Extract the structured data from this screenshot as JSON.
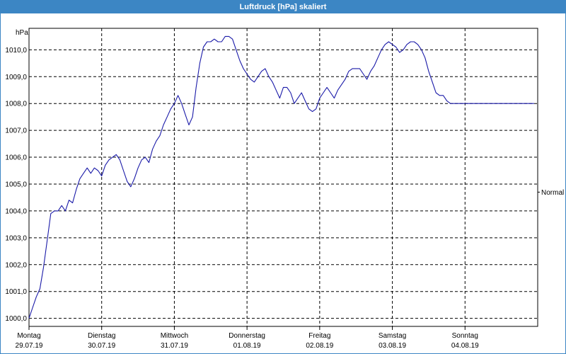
{
  "window": {
    "title": "Luftdruck [hPa] skaliert"
  },
  "chart_data": {
    "type": "line",
    "title": "Luftdruck [hPa] skaliert",
    "ylabel": "hPa",
    "ylim": [
      999.7,
      1010.8
    ],
    "y_ticks": [
      "1000,0",
      "1001,0",
      "1002,0",
      "1003,0",
      "1004,0",
      "1005,0",
      "1006,0",
      "1007,0",
      "1008,0",
      "1009,0",
      "1010,0"
    ],
    "y_tick_values": [
      1000,
      1001,
      1002,
      1003,
      1004,
      1005,
      1006,
      1007,
      1008,
      1009,
      1010
    ],
    "x_range": [
      0,
      7
    ],
    "days": [
      {
        "name": "Montag",
        "date": "29.07.19"
      },
      {
        "name": "Dienstag",
        "date": "30.07.19"
      },
      {
        "name": "Mittwoch",
        "date": "31.07.19"
      },
      {
        "name": "Donnerstag",
        "date": "01.08.19"
      },
      {
        "name": "Freitag",
        "date": "02.08.19"
      },
      {
        "name": "Samstag",
        "date": "03.08.19"
      },
      {
        "name": "Sonntag",
        "date": "04.08.19"
      }
    ],
    "reference_label": "Normal",
    "reference_value": 1004.7,
    "grid": true,
    "line_color": "#1a1aa8",
    "series": [
      {
        "x": [
          0.0,
          0.05,
          0.1,
          0.15,
          0.2,
          0.25,
          0.3,
          0.35,
          0.4,
          0.45,
          0.5,
          0.55,
          0.6,
          0.65,
          0.7,
          0.75,
          0.8,
          0.85,
          0.9,
          0.95,
          1.0,
          1.05,
          1.1,
          1.15,
          1.2,
          1.25,
          1.3,
          1.35,
          1.4,
          1.45,
          1.5,
          1.55,
          1.6,
          1.65,
          1.7,
          1.75,
          1.8,
          1.85,
          1.9,
          1.95,
          2.0,
          2.05,
          2.1,
          2.15,
          2.2,
          2.25,
          2.3,
          2.35,
          2.4,
          2.45,
          2.5,
          2.55,
          2.6,
          2.65,
          2.7,
          2.75,
          2.8,
          2.85,
          2.9,
          2.95,
          3.0,
          3.05,
          3.1,
          3.15,
          3.2,
          3.25,
          3.3,
          3.35,
          3.4,
          3.45,
          3.5,
          3.55,
          3.6,
          3.65,
          3.7,
          3.75,
          3.8,
          3.85,
          3.9,
          3.95,
          4.0,
          4.05,
          4.1,
          4.15,
          4.2,
          4.25,
          4.3,
          4.35,
          4.4,
          4.45,
          4.5,
          4.55,
          4.6,
          4.65,
          4.7,
          4.75,
          4.8,
          4.85,
          4.9,
          4.95,
          5.0,
          5.05,
          5.1,
          5.15,
          5.2,
          5.25,
          5.3,
          5.35,
          5.4,
          5.45,
          5.5,
          5.55,
          5.6,
          5.65,
          5.7,
          5.75,
          5.8,
          5.85,
          5.9,
          5.95,
          6.0,
          6.05,
          6.1,
          6.15,
          6.2,
          6.25,
          6.3,
          6.35,
          6.4,
          6.45,
          6.5,
          6.55,
          6.6,
          6.65,
          6.7,
          6.75,
          6.8,
          6.85,
          6.9,
          6.95
        ],
        "y": [
          1000.0,
          1000.4,
          1000.8,
          1001.1,
          1001.9,
          1002.9,
          1003.9,
          1004.0,
          1004.0,
          1004.2,
          1004.0,
          1004.4,
          1004.3,
          1004.8,
          1005.2,
          1005.4,
          1005.6,
          1005.4,
          1005.6,
          1005.5,
          1005.3,
          1005.7,
          1005.9,
          1006.0,
          1006.1,
          1005.9,
          1005.5,
          1005.1,
          1004.9,
          1005.2,
          1005.6,
          1005.9,
          1006.0,
          1005.8,
          1006.3,
          1006.6,
          1006.8,
          1007.2,
          1007.5,
          1007.8,
          1008.0,
          1008.3,
          1008.0,
          1007.6,
          1007.2,
          1007.5,
          1008.6,
          1009.5,
          1010.1,
          1010.3,
          1010.3,
          1010.4,
          1010.3,
          1010.3,
          1010.5,
          1010.5,
          1010.4,
          1010.0,
          1009.6,
          1009.3,
          1009.1,
          1008.9,
          1008.8,
          1009.0,
          1009.2,
          1009.3,
          1009.0,
          1008.8,
          1008.5,
          1008.2,
          1008.6,
          1008.6,
          1008.4,
          1008.0,
          1008.2,
          1008.4,
          1008.1,
          1007.8,
          1007.7,
          1007.8,
          1008.2,
          1008.4,
          1008.6,
          1008.4,
          1008.2,
          1008.5,
          1008.7,
          1008.9,
          1009.2,
          1009.3,
          1009.3,
          1009.3,
          1009.1,
          1008.9,
          1009.2,
          1009.4,
          1009.7,
          1010.0,
          1010.2,
          1010.3,
          1010.2,
          1010.1,
          1009.9,
          1010.0,
          1010.2,
          1010.3,
          1010.3,
          1010.2,
          1010.0,
          1009.7,
          1009.2,
          1008.8,
          1008.4,
          1008.3,
          1008.3,
          1008.1,
          1008.0,
          1008.0,
          1008.0,
          1008.0,
          1008.0,
          1008.0,
          1008.0,
          1008.0,
          1008.0,
          1008.0,
          1008.0,
          1008.0,
          1008.0,
          1008.0,
          1008.0,
          1008.0,
          1008.0,
          1008.0,
          1008.0,
          1008.0,
          1008.0,
          1008.0,
          1008.0,
          1008.0
        ]
      }
    ]
  }
}
